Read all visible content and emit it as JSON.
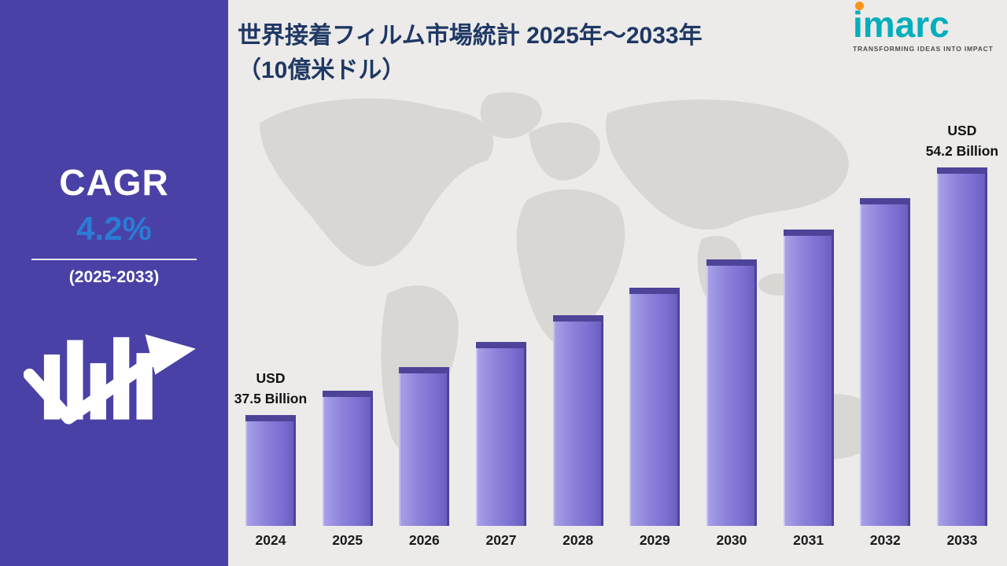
{
  "sidebar": {
    "cagr_label": "CAGR",
    "cagr_value": "4.2%",
    "period": "(2025-2033)",
    "bg_color": "#4a41a6",
    "value_color": "#2a7cd4"
  },
  "header": {
    "title_line1": "世界接着フィルム市場統計 2025年～2033年",
    "title_line2": "（10億米ドル）",
    "color": "#1f3864"
  },
  "logo": {
    "name": "imarc",
    "tagline": "TRANSFORMING IDEAS INTO IMPACT",
    "brand_color": "#00aebc",
    "dot_color": "#f7941d"
  },
  "chart_data": {
    "type": "bar",
    "title": "世界接着フィルム市場統計 2025年～2033年（10億米ドル）",
    "xlabel": "",
    "ylabel": "USD Billion",
    "categories": [
      "2024",
      "2025",
      "2026",
      "2027",
      "2028",
      "2029",
      "2030",
      "2031",
      "2032",
      "2033"
    ],
    "values": [
      37.5,
      39.1,
      40.7,
      42.4,
      44.2,
      46.1,
      48.0,
      50.0,
      52.1,
      54.2
    ],
    "ylim": [
      30,
      56
    ],
    "grid": false,
    "legend": false,
    "bar_color": "#8478d6",
    "bar_labels": {
      "2024": "USD\n37.5 Billion",
      "2033": "USD\n54.2 Billion"
    },
    "cagr": "4.2%",
    "cagr_period": "2025-2033"
  }
}
